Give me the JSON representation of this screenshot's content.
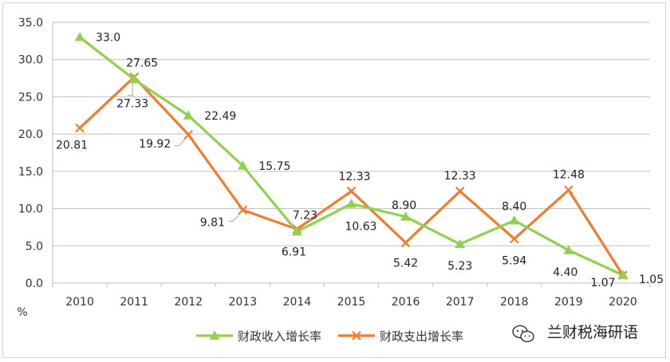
{
  "chart_data": {
    "type": "line",
    "title": "",
    "xlabel": "",
    "ylabel": "%",
    "categories": [
      "2010",
      "2011",
      "2012",
      "2013",
      "2014",
      "2015",
      "2016",
      "2017",
      "2018",
      "2019",
      "2020"
    ],
    "ylim": [
      0,
      35
    ],
    "yticks": [
      "0.0",
      "5.0",
      "10.0",
      "15.0",
      "20.0",
      "25.0",
      "30.0",
      "35.0"
    ],
    "grid": true,
    "legend_position": "bottom-center",
    "series": [
      {
        "name": "财政收入增长率",
        "color": "#92d050",
        "marker": "triangle",
        "values": [
          33.0,
          27.33,
          22.49,
          15.75,
          6.91,
          10.63,
          8.9,
          5.23,
          8.4,
          4.4,
          1.07
        ],
        "labels": [
          "33.0",
          "27.33",
          "22.49",
          "15.75",
          "6.91",
          "10.63",
          "8.90",
          "5.23",
          "8.40",
          "4.40",
          "1.07"
        ]
      },
      {
        "name": "财政支出增长率",
        "color": "#ed7d31",
        "marker": "x",
        "values": [
          20.81,
          27.65,
          19.92,
          9.81,
          7.23,
          12.33,
          5.42,
          12.33,
          5.94,
          12.48,
          1.05
        ],
        "labels": [
          "20.81",
          "27.65",
          "19.92",
          "9.81",
          "7.23",
          "12.33",
          "5.42",
          "12.33",
          "5.94",
          "12.48",
          "1.05"
        ]
      }
    ]
  },
  "watermark": {
    "text": "兰财税海研语",
    "icon": "wechat-icon"
  }
}
